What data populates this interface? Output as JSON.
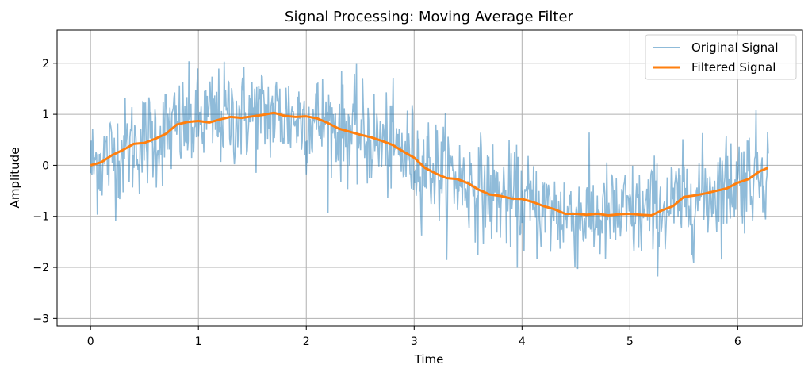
{
  "chart_data": {
    "type": "line",
    "title": "Signal Processing: Moving Average Filter",
    "xlabel": "Time",
    "ylabel": "Amplitude",
    "xlim": [
      -0.31,
      6.6
    ],
    "ylim": [
      -3.15,
      2.65
    ],
    "xticks": [
      0,
      1,
      2,
      3,
      4,
      5,
      6
    ],
    "xtick_labels": [
      "0",
      "1",
      "2",
      "3",
      "4",
      "5",
      "6"
    ],
    "yticks": [
      -3,
      -2,
      -1,
      0,
      1,
      2
    ],
    "ytick_labels": [
      "−3",
      "−2",
      "−1",
      "0",
      "1",
      "2"
    ],
    "grid": true,
    "legend_position": "top-right",
    "series": [
      {
        "name": "Original Signal",
        "color": "#1f77b4",
        "alpha": 0.5,
        "x_range": [
          0,
          6.283
        ],
        "n_points": 1000,
        "underlying": "sin(x)",
        "noise_std": 0.5
      },
      {
        "name": "Filtered Signal",
        "color": "#ff7f0e",
        "x": [
          0,
          0.1,
          0.2,
          0.3,
          0.4,
          0.5,
          0.6,
          0.7,
          0.8,
          0.9,
          1.0,
          1.1,
          1.2,
          1.3,
          1.4,
          1.5,
          1.6,
          1.7,
          1.8,
          1.9,
          2.0,
          2.1,
          2.2,
          2.3,
          2.4,
          2.5,
          2.6,
          2.7,
          2.8,
          2.9,
          3.0,
          3.1,
          3.2,
          3.3,
          3.4,
          3.5,
          3.6,
          3.7,
          3.8,
          3.9,
          4.0,
          4.1,
          4.2,
          4.3,
          4.4,
          4.5,
          4.6,
          4.7,
          4.8,
          4.9,
          5.0,
          5.1,
          5.2,
          5.3,
          5.4,
          5.5,
          5.6,
          5.7,
          5.8,
          5.9,
          6.0,
          6.1,
          6.2,
          6.28
        ],
        "y": [
          0.0,
          0.06,
          0.2,
          0.3,
          0.42,
          0.44,
          0.52,
          0.62,
          0.8,
          0.85,
          0.87,
          0.84,
          0.9,
          0.95,
          0.93,
          0.96,
          0.99,
          1.03,
          0.97,
          0.95,
          0.96,
          0.92,
          0.83,
          0.72,
          0.66,
          0.6,
          0.55,
          0.48,
          0.4,
          0.27,
          0.15,
          -0.05,
          -0.16,
          -0.25,
          -0.27,
          -0.35,
          -0.48,
          -0.57,
          -0.6,
          -0.65,
          -0.66,
          -0.72,
          -0.8,
          -0.86,
          -0.95,
          -0.95,
          -0.97,
          -0.95,
          -0.98,
          -0.96,
          -0.95,
          -0.97,
          -0.98,
          -0.88,
          -0.8,
          -0.62,
          -0.59,
          -0.55,
          -0.5,
          -0.45,
          -0.34,
          -0.27,
          -0.12,
          -0.05
        ]
      }
    ]
  }
}
